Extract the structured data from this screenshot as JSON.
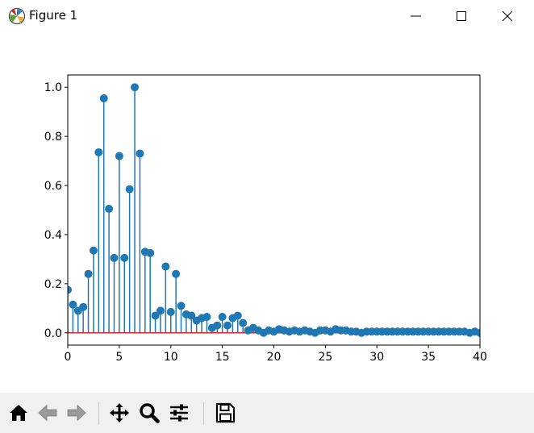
{
  "window": {
    "title": "Figure 1"
  },
  "toolbar": {
    "buttons": [
      {
        "name": "home-button",
        "icon": "home-icon"
      },
      {
        "name": "back-button",
        "icon": "arrow-left-icon"
      },
      {
        "name": "forward-button",
        "icon": "arrow-right-icon"
      },
      {
        "name": "pan-button",
        "icon": "move-icon"
      },
      {
        "name": "zoom-button",
        "icon": "magnifier-icon"
      },
      {
        "name": "configure-subplots-button",
        "icon": "sliders-icon"
      },
      {
        "name": "save-button",
        "icon": "floppy-disk-icon"
      }
    ]
  },
  "colors": {
    "stem": "#1f77b4",
    "baseline": "#d62728"
  },
  "chart_data": {
    "type": "stem",
    "title": "",
    "xlabel": "",
    "ylabel": "",
    "xlim": [
      0,
      40
    ],
    "ylim": [
      -0.05,
      1.05
    ],
    "xticks": [
      0,
      5,
      10,
      15,
      20,
      25,
      30,
      35,
      40
    ],
    "yticks": [
      0.0,
      0.2,
      0.4,
      0.6,
      0.8,
      1.0
    ],
    "ytick_labels": [
      "0.0",
      "0.2",
      "0.4",
      "0.6",
      "0.8",
      "1.0"
    ],
    "baseline": 0,
    "x_step": 0.5,
    "values": [
      0.175,
      0.115,
      0.09,
      0.105,
      0.24,
      0.335,
      0.735,
      0.955,
      0.505,
      0.305,
      0.72,
      0.305,
      0.585,
      1.0,
      0.73,
      0.33,
      0.325,
      0.07,
      0.09,
      0.27,
      0.085,
      0.24,
      0.11,
      0.075,
      0.07,
      0.05,
      0.06,
      0.065,
      0.02,
      0.03,
      0.065,
      0.03,
      0.06,
      0.07,
      0.04,
      0.01,
      0.02,
      0.01,
      0.0,
      0.01,
      0.005,
      0.015,
      0.01,
      0.005,
      0.01,
      0.005,
      0.01,
      0.005,
      0.0,
      0.01,
      0.01,
      0.005,
      0.015,
      0.01,
      0.01,
      0.005,
      0.005,
      0.0,
      0.005,
      0.005,
      0.005,
      0.005,
      0.005,
      0.005,
      0.005,
      0.005,
      0.005,
      0.005,
      0.005,
      0.005,
      0.005,
      0.005,
      0.005,
      0.005,
      0.005,
      0.005,
      0.005,
      0.005,
      0.0,
      0.005,
      0.0
    ]
  }
}
